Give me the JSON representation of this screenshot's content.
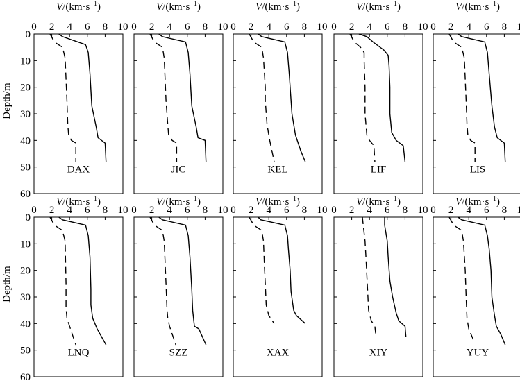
{
  "chart_data": {
    "type": "line",
    "layout": "grid of 10 panels, 2 rows x 5 columns",
    "xlabel": "V/(km·s⁻¹)",
    "xlabel_italic_part": "V",
    "xlabel_rest": "/(km·s",
    "xlabel_sup": "−1",
    "xlabel_close": ")",
    "ylabel": "Depth/m",
    "xlim": [
      0,
      10
    ],
    "ylim": [
      0,
      60
    ],
    "y_inverted": true,
    "xticks": [
      0,
      2,
      4,
      6,
      8,
      10
    ],
    "yticks": [
      0,
      10,
      20,
      30,
      40,
      50,
      60
    ],
    "grid": false,
    "solid_line_style": "solid",
    "dashed_line_style": "dashed",
    "panels": [
      {
        "label": "DAX",
        "solid": [
          [
            2.8,
            0
          ],
          [
            3.2,
            1
          ],
          [
            5.8,
            4
          ],
          [
            6.1,
            7
          ],
          [
            6.3,
            15
          ],
          [
            6.5,
            27
          ],
          [
            7,
            35
          ],
          [
            7.2,
            39
          ],
          [
            8,
            41
          ],
          [
            8.1,
            48
          ]
        ],
        "dashed": [
          [
            1.8,
            0
          ],
          [
            2.3,
            3
          ],
          [
            3.2,
            5
          ],
          [
            3.5,
            9
          ],
          [
            3.7,
            25
          ],
          [
            3.8,
            34
          ],
          [
            3.9,
            38
          ],
          [
            4.2,
            40
          ],
          [
            4.7,
            41
          ],
          [
            4.7,
            48
          ]
        ]
      },
      {
        "label": "JIC",
        "solid": [
          [
            2.8,
            0
          ],
          [
            3.2,
            1
          ],
          [
            5.8,
            3
          ],
          [
            6.1,
            7
          ],
          [
            6.3,
            15
          ],
          [
            6.5,
            27
          ],
          [
            7,
            35
          ],
          [
            7.2,
            39
          ],
          [
            8,
            40
          ],
          [
            8.1,
            48
          ]
        ],
        "dashed": [
          [
            1.8,
            0
          ],
          [
            2.3,
            3
          ],
          [
            3.2,
            5
          ],
          [
            3.4,
            9
          ],
          [
            3.6,
            25
          ],
          [
            3.8,
            34
          ],
          [
            3.9,
            38
          ],
          [
            4.3,
            40
          ],
          [
            4.8,
            41
          ],
          [
            4.8,
            48
          ]
        ]
      },
      {
        "label": "KEL",
        "solid": [
          [
            2.8,
            0
          ],
          [
            3.2,
            1
          ],
          [
            5.8,
            3
          ],
          [
            6.1,
            7
          ],
          [
            6.3,
            15
          ],
          [
            6.5,
            25
          ],
          [
            6.6,
            30
          ],
          [
            7,
            38
          ],
          [
            7.6,
            44
          ],
          [
            8.1,
            48
          ]
        ],
        "dashed": [
          [
            1.8,
            0
          ],
          [
            2.3,
            3
          ],
          [
            3.2,
            5
          ],
          [
            3.4,
            9
          ],
          [
            3.6,
            20
          ],
          [
            3.6,
            25
          ],
          [
            3.8,
            34
          ],
          [
            4.1,
            40
          ],
          [
            4.6,
            48
          ]
        ]
      },
      {
        "label": "LIF",
        "solid": [
          [
            2.8,
            0
          ],
          [
            3.7,
            1
          ],
          [
            4.4,
            3
          ],
          [
            5.6,
            6
          ],
          [
            6.1,
            8
          ],
          [
            6.2,
            12
          ],
          [
            6.3,
            20
          ],
          [
            6.3,
            30
          ],
          [
            6.5,
            37
          ],
          [
            7,
            40
          ],
          [
            7.8,
            42
          ],
          [
            8,
            48
          ]
        ],
        "dashed": [
          [
            1.8,
            0
          ],
          [
            2.3,
            3
          ],
          [
            3.0,
            5
          ],
          [
            3.4,
            7
          ],
          [
            3.4,
            10
          ],
          [
            3.5,
            20
          ],
          [
            3.5,
            30
          ],
          [
            3.7,
            38
          ],
          [
            4.0,
            40
          ],
          [
            4.5,
            42
          ],
          [
            4.6,
            48
          ]
        ]
      },
      {
        "label": "LIS",
        "solid": [
          [
            2.8,
            0
          ],
          [
            3.2,
            1
          ],
          [
            5.8,
            3
          ],
          [
            6.1,
            7
          ],
          [
            6.3,
            15
          ],
          [
            6.6,
            27
          ],
          [
            6.9,
            35
          ],
          [
            7.2,
            39
          ],
          [
            8,
            41
          ],
          [
            8.1,
            48
          ]
        ],
        "dashed": [
          [
            1.8,
            0
          ],
          [
            2.3,
            3
          ],
          [
            3.2,
            5
          ],
          [
            3.5,
            9
          ],
          [
            3.7,
            25
          ],
          [
            3.8,
            34
          ],
          [
            3.9,
            38
          ],
          [
            4.2,
            40
          ],
          [
            4.7,
            41
          ],
          [
            4.7,
            48
          ]
        ]
      },
      {
        "label": "LNQ",
        "solid": [
          [
            2.8,
            0
          ],
          [
            3.2,
            1
          ],
          [
            5.8,
            3
          ],
          [
            6.1,
            7
          ],
          [
            6.3,
            15
          ],
          [
            6.4,
            27
          ],
          [
            6.4,
            33
          ],
          [
            6.6,
            38
          ],
          [
            7.1,
            42
          ],
          [
            8.1,
            48
          ]
        ],
        "dashed": [
          [
            1.8,
            0
          ],
          [
            2.3,
            3
          ],
          [
            3.2,
            5
          ],
          [
            3.5,
            9
          ],
          [
            3.6,
            25
          ],
          [
            3.6,
            34
          ],
          [
            3.7,
            38
          ],
          [
            4,
            41
          ],
          [
            4.7,
            48
          ]
        ]
      },
      {
        "label": "SZZ",
        "solid": [
          [
            2.8,
            0
          ],
          [
            3.2,
            1
          ],
          [
            5.8,
            3
          ],
          [
            6.1,
            7
          ],
          [
            6.3,
            15
          ],
          [
            6.5,
            27
          ],
          [
            6.6,
            35
          ],
          [
            6.8,
            41
          ],
          [
            7.3,
            42
          ],
          [
            8.1,
            48
          ]
        ],
        "dashed": [
          [
            1.8,
            0
          ],
          [
            2.3,
            3
          ],
          [
            3.2,
            5
          ],
          [
            3.4,
            9
          ],
          [
            3.6,
            25
          ],
          [
            3.7,
            34
          ],
          [
            3.8,
            38
          ],
          [
            4,
            41
          ],
          [
            4.7,
            48
          ]
        ]
      },
      {
        "label": "XAX",
        "solid": [
          [
            2.8,
            0
          ],
          [
            3.1,
            1
          ],
          [
            5.8,
            3
          ],
          [
            6.1,
            7
          ],
          [
            6.2,
            12
          ],
          [
            6.4,
            20
          ],
          [
            6.5,
            28
          ],
          [
            6.8,
            35
          ],
          [
            7.1,
            37
          ],
          [
            8.1,
            40
          ]
        ],
        "dashed": [
          [
            1.8,
            0
          ],
          [
            2.3,
            3
          ],
          [
            3.2,
            5
          ],
          [
            3.4,
            9
          ],
          [
            3.5,
            18
          ],
          [
            3.6,
            25
          ],
          [
            3.7,
            33
          ],
          [
            4.0,
            37
          ],
          [
            4.6,
            40
          ]
        ]
      },
      {
        "label": "XIY",
        "solid": [
          [
            5.7,
            0
          ],
          [
            5.7,
            3
          ],
          [
            6,
            9
          ],
          [
            6.1,
            15
          ],
          [
            6.3,
            24
          ],
          [
            6.6,
            30
          ],
          [
            7,
            36
          ],
          [
            7.3,
            39
          ],
          [
            8,
            41
          ],
          [
            8.1,
            45
          ]
        ],
        "dashed": [
          [
            3.2,
            0
          ],
          [
            3.3,
            3
          ],
          [
            3.5,
            9
          ],
          [
            3.6,
            15
          ],
          [
            3.7,
            22
          ],
          [
            3.8,
            28
          ],
          [
            3.9,
            35
          ],
          [
            4.2,
            39
          ],
          [
            4.6,
            41
          ],
          [
            4.7,
            44
          ]
        ]
      },
      {
        "label": "YUY",
        "solid": [
          [
            2.8,
            0
          ],
          [
            3.2,
            1
          ],
          [
            5.8,
            3
          ],
          [
            6.1,
            7
          ],
          [
            6.3,
            12
          ],
          [
            6.5,
            20
          ],
          [
            6.6,
            30
          ],
          [
            6.9,
            37
          ],
          [
            7.1,
            41
          ],
          [
            7.6,
            44
          ],
          [
            8.1,
            48
          ]
        ],
        "dashed": [
          [
            1.8,
            0
          ],
          [
            2.3,
            3
          ],
          [
            3.2,
            5
          ],
          [
            3.4,
            9
          ],
          [
            3.6,
            20
          ],
          [
            3.7,
            30
          ],
          [
            3.8,
            38
          ],
          [
            4,
            42
          ],
          [
            4.5,
            46
          ]
        ]
      }
    ]
  }
}
